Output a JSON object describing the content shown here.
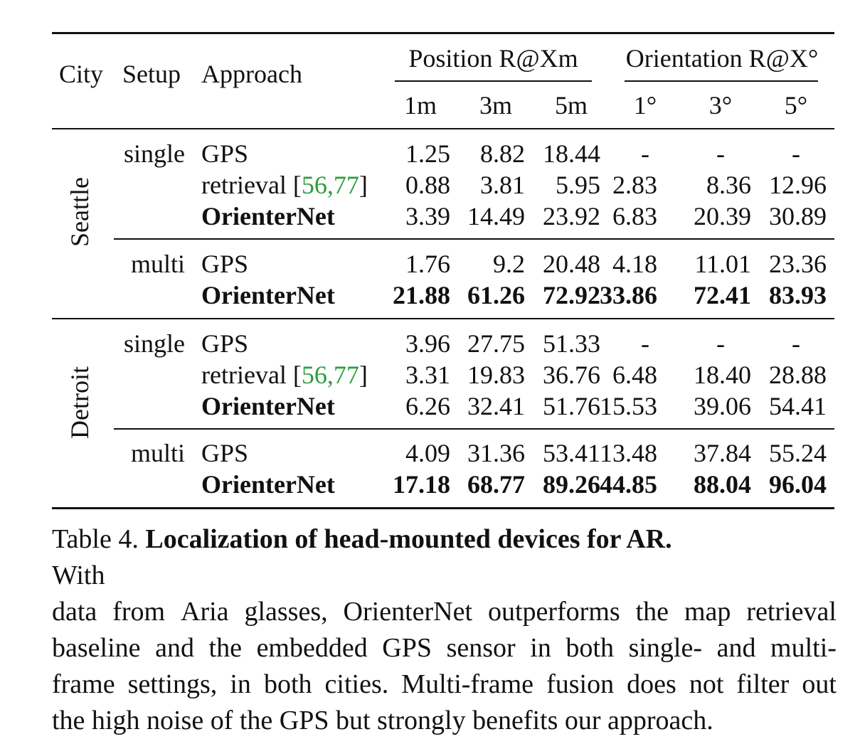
{
  "header": {
    "city": "City",
    "setup": "Setup",
    "approach": "Approach",
    "position_group": "Position R@Xm",
    "orientation_group": "Orientation R@X°",
    "position_cols": [
      "1m",
      "3m",
      "5m"
    ],
    "orientation_cols": [
      "1°",
      "3°",
      "5°"
    ]
  },
  "cities": [
    {
      "name": "Seattle",
      "setups": [
        {
          "setup": "single",
          "rows": [
            {
              "approach": "GPS",
              "bold": false,
              "cite": "",
              "values": [
                "1.25",
                "8.82",
                "18.44",
                "-",
                "-",
                "-"
              ],
              "bold_values": false
            },
            {
              "approach": "retrieval [",
              "bold": false,
              "cite": "56, 77",
              "values": [
                "0.88",
                "3.81",
                "5.95",
                "2.83",
                "8.36",
                "12.96"
              ],
              "bold_values": false
            },
            {
              "approach": "OrienterNet",
              "bold": true,
              "cite": "",
              "values": [
                "3.39",
                "14.49",
                "23.92",
                "6.83",
                "20.39",
                "30.89"
              ],
              "bold_values": false
            }
          ]
        },
        {
          "setup": "multi",
          "rows": [
            {
              "approach": "GPS",
              "bold": false,
              "cite": "",
              "values": [
                "1.76",
                "9.2",
                "20.48",
                "4.18",
                "11.01",
                "23.36"
              ],
              "bold_values": false
            },
            {
              "approach": "OrienterNet",
              "bold": true,
              "cite": "",
              "values": [
                "21.88",
                "61.26",
                "72.92",
                "33.86",
                "72.41",
                "83.93"
              ],
              "bold_values": true
            }
          ]
        }
      ]
    },
    {
      "name": "Detroit",
      "setups": [
        {
          "setup": "single",
          "rows": [
            {
              "approach": "GPS",
              "bold": false,
              "cite": "",
              "values": [
                "3.96",
                "27.75",
                "51.33",
                "-",
                "-",
                "-"
              ],
              "bold_values": false
            },
            {
              "approach": "retrieval [",
              "bold": false,
              "cite": "56, 77",
              "values": [
                "3.31",
                "19.83",
                "36.76",
                "6.48",
                "18.40",
                "28.88"
              ],
              "bold_values": false
            },
            {
              "approach": "OrienterNet",
              "bold": true,
              "cite": "",
              "values": [
                "6.26",
                "32.41",
                "51.76",
                "15.53",
                "39.06",
                "54.41"
              ],
              "bold_values": false
            }
          ]
        },
        {
          "setup": "multi",
          "rows": [
            {
              "approach": "GPS",
              "bold": false,
              "cite": "",
              "values": [
                "4.09",
                "31.36",
                "53.41",
                "13.48",
                "37.84",
                "55.24"
              ],
              "bold_values": false
            },
            {
              "approach": "OrienterNet",
              "bold": true,
              "cite": "",
              "values": [
                "17.18",
                "68.77",
                "89.26",
                "44.85",
                "88.04",
                "96.04"
              ],
              "bold_values": true
            }
          ]
        }
      ]
    }
  ],
  "caption": {
    "label": "Table 4.",
    "title": "Localization of head-mounted devices for AR.",
    "body": "With data from Aria glasses, OrienterNet outperforms the map retrieval baseline and the embedded GPS sensor in both single- and multi-frame settings, in both cities. Multi-frame fusion does not filter out the high noise of the GPS but strongly benefits our approach.",
    "lines": [
      "With",
      "data from Aria glasses, OrienterNet outperforms the map retrieval",
      "baseline and the embedded GPS sensor in both single- and multi-",
      "frame settings, in both cities. Multi-frame fusion does not filter out",
      "the high noise of the GPS but strongly benefits our approach."
    ]
  },
  "colors": {
    "text": "#111111",
    "citation": "#2e9c3c",
    "rule": "#111111"
  }
}
